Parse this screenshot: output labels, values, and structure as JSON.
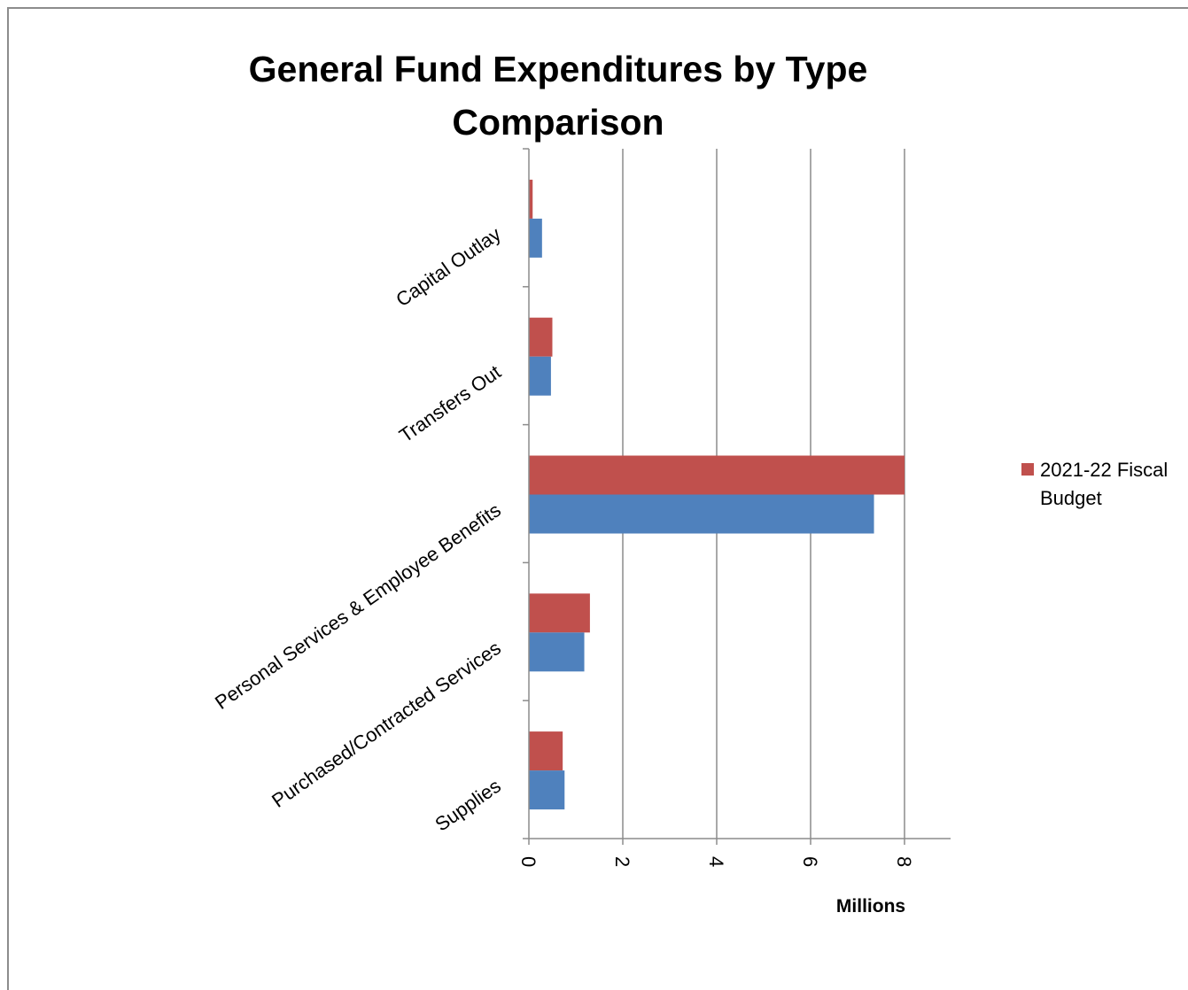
{
  "chart_data": {
    "type": "bar",
    "orientation": "horizontal",
    "title": "General Fund Expenditures by Type Comparison",
    "xlabel": "Millions",
    "ylabel": "",
    "categories": [
      "Capital Outlay",
      "Transfers Out",
      "Personal Services & Employee Benefits",
      "Purchased/Contracted Services",
      "Supplies"
    ],
    "series": [
      {
        "name": "2021-22 Fiscal Budget",
        "color": "#c0504d",
        "values": [
          0.08,
          0.5,
          8.0,
          1.3,
          0.72
        ]
      },
      {
        "color": "#4f81bd",
        "values": [
          0.28,
          0.47,
          7.35,
          1.18,
          0.76
        ]
      }
    ],
    "xlim": [
      0,
      9
    ],
    "xticks": [
      0,
      2,
      4,
      6,
      8
    ],
    "grid": true,
    "legend_position": "right"
  }
}
